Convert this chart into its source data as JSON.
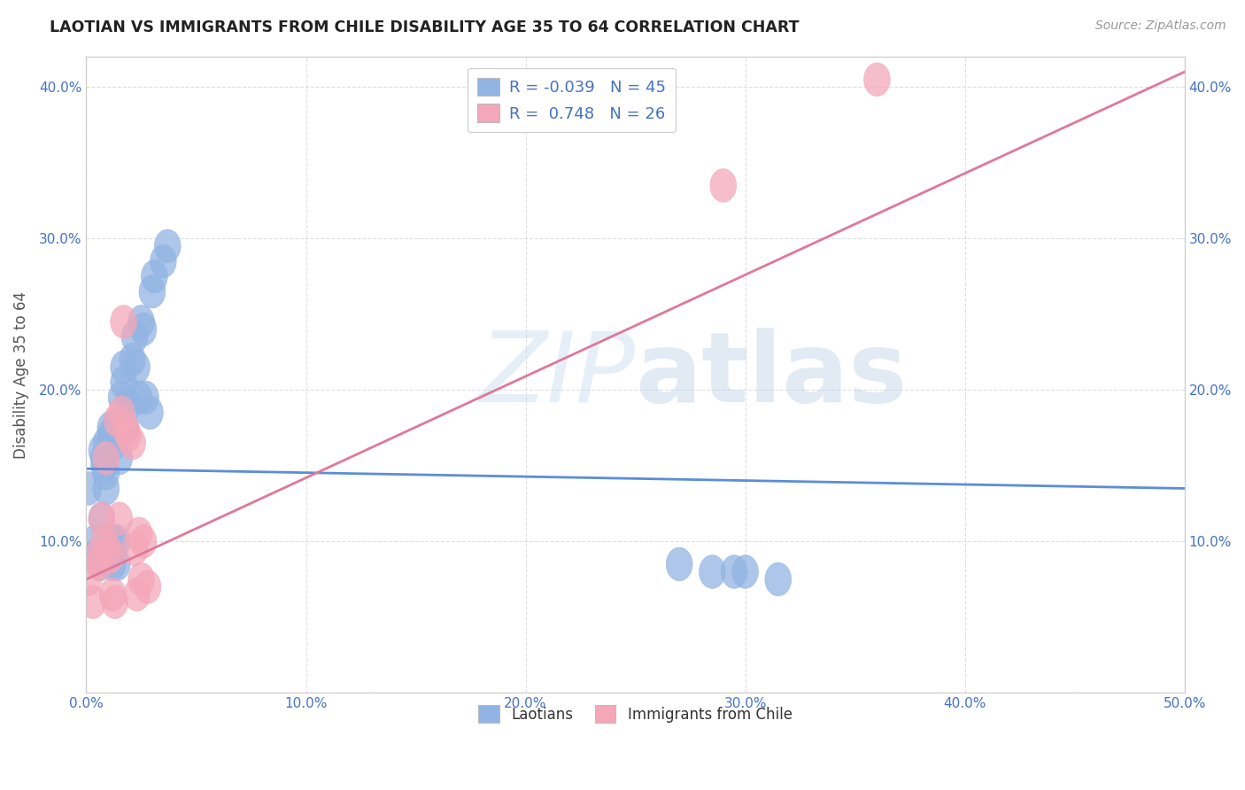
{
  "title": "LAOTIAN VS IMMIGRANTS FROM CHILE DISABILITY AGE 35 TO 64 CORRELATION CHART",
  "source": "Source: ZipAtlas.com",
  "ylabel_label": "Disability Age 35 to 64",
  "xlim": [
    0.0,
    0.5
  ],
  "ylim": [
    0.0,
    0.42
  ],
  "xticks": [
    0.0,
    0.1,
    0.2,
    0.3,
    0.4,
    0.5
  ],
  "xtick_labels": [
    "0.0%",
    "10.0%",
    "20.0%",
    "30.0%",
    "40.0%",
    "50.0%"
  ],
  "yticks": [
    0.0,
    0.1,
    0.2,
    0.3,
    0.4
  ],
  "ytick_labels": [
    "",
    "10.0%",
    "20.0%",
    "30.0%",
    "40.0%"
  ],
  "laotian_color": "#92b4e3",
  "chile_color": "#f4a7b9",
  "laotian_R": -0.039,
  "laotian_N": 45,
  "chile_R": 0.748,
  "chile_N": 26,
  "laotian_scatter_x": [
    0.001,
    0.004,
    0.004,
    0.006,
    0.007,
    0.007,
    0.008,
    0.008,
    0.009,
    0.009,
    0.009,
    0.009,
    0.01,
    0.01,
    0.011,
    0.011,
    0.012,
    0.012,
    0.013,
    0.013,
    0.014,
    0.014,
    0.015,
    0.016,
    0.017,
    0.017,
    0.018,
    0.019,
    0.021,
    0.022,
    0.023,
    0.024,
    0.025,
    0.026,
    0.027,
    0.029,
    0.03,
    0.031,
    0.035,
    0.037,
    0.27,
    0.285,
    0.295,
    0.3,
    0.315
  ],
  "laotian_scatter_y": [
    0.135,
    0.09,
    0.1,
    0.085,
    0.115,
    0.16,
    0.15,
    0.155,
    0.165,
    0.09,
    0.135,
    0.145,
    0.09,
    0.1,
    0.17,
    0.175,
    0.085,
    0.1,
    0.165,
    0.175,
    0.085,
    0.1,
    0.155,
    0.195,
    0.205,
    0.215,
    0.175,
    0.19,
    0.22,
    0.235,
    0.215,
    0.195,
    0.245,
    0.24,
    0.195,
    0.185,
    0.265,
    0.275,
    0.285,
    0.295,
    0.085,
    0.08,
    0.08,
    0.08,
    0.075
  ],
  "chile_scatter_x": [
    0.001,
    0.003,
    0.005,
    0.006,
    0.007,
    0.008,
    0.009,
    0.01,
    0.011,
    0.012,
    0.013,
    0.014,
    0.015,
    0.016,
    0.017,
    0.018,
    0.019,
    0.021,
    0.022,
    0.023,
    0.024,
    0.025,
    0.026,
    0.028,
    0.29,
    0.36
  ],
  "chile_scatter_y": [
    0.075,
    0.06,
    0.09,
    0.085,
    0.115,
    0.1,
    0.155,
    0.095,
    0.09,
    0.065,
    0.06,
    0.18,
    0.115,
    0.185,
    0.245,
    0.175,
    0.17,
    0.165,
    0.095,
    0.065,
    0.105,
    0.075,
    0.1,
    0.07,
    0.335,
    0.405
  ],
  "laotian_line_y_start": 0.148,
  "laotian_line_y_end": 0.135,
  "chile_line_y_start": 0.075,
  "chile_line_y_end": 0.41,
  "watermark_zip": "ZIP",
  "watermark_atlas": "atlas",
  "bg_color": "#ffffff",
  "grid_color": "#d8d8d8",
  "tick_color": "#4472c4",
  "title_color": "#222222",
  "source_color": "#999999"
}
